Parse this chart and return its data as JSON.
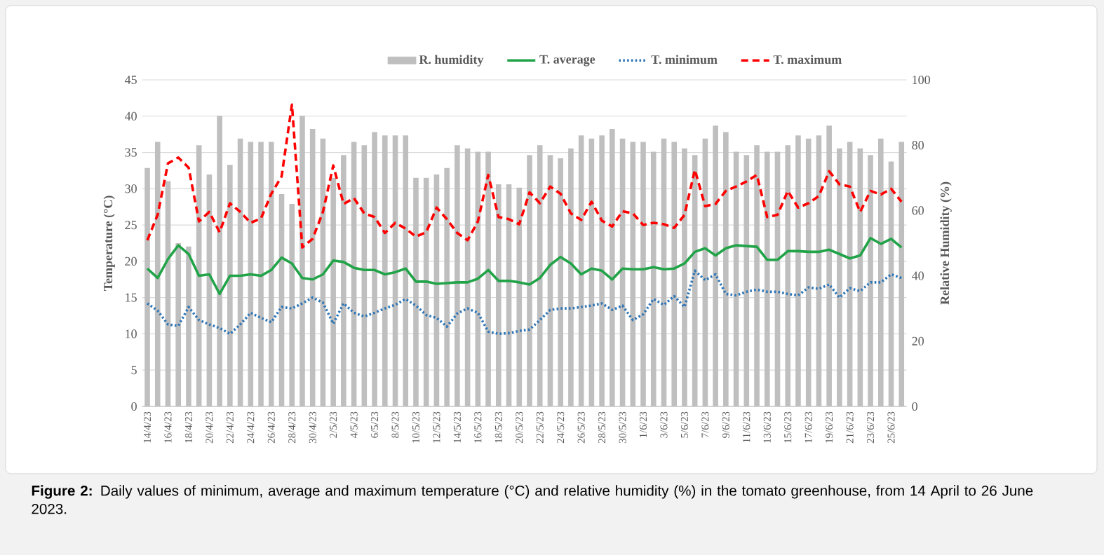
{
  "chart_data": {
    "type": "line",
    "categories": [
      "14/4/23",
      null,
      "16/4/23",
      null,
      "18/4/23",
      null,
      "20/4/23",
      null,
      "22/4/23",
      null,
      "24/4/23",
      null,
      "26/4/23",
      null,
      "28/4/23",
      null,
      "30/4/23",
      null,
      "2/5/23",
      null,
      "4/5/23",
      null,
      "6/5/23",
      null,
      "8/5/23",
      null,
      "10/5/23",
      null,
      "12/5/23",
      null,
      "14/5/23",
      null,
      "16/5/23",
      null,
      "18/5/23",
      null,
      "20/5/23",
      null,
      "22/5/23",
      null,
      "24/5/23",
      null,
      "26/5/23",
      null,
      "28/5/23",
      null,
      "30/5/23",
      null,
      "1/6/23",
      null,
      "3/6/23",
      null,
      "5/6/23",
      null,
      "7/6/23",
      null,
      "9/6/23",
      null,
      "11/6/23",
      null,
      "13/6/23",
      null,
      "15/6/23",
      null,
      "17/6/23",
      null,
      "19/6/23",
      null,
      "21/6/23",
      null,
      "23/6/23",
      null,
      "25/6/23",
      null
    ],
    "series": [
      {
        "name": "R. humidity",
        "type": "bar",
        "axis": "y2",
        "color": "#bfbfbf",
        "values": [
          73,
          81,
          69,
          50,
          49,
          80,
          71,
          89,
          74,
          82,
          81,
          81,
          81,
          65,
          62,
          89,
          85,
          82,
          70,
          77,
          81,
          80,
          84,
          83,
          83,
          83,
          70,
          70,
          71,
          73,
          80,
          79,
          78,
          78,
          68,
          68,
          67,
          77,
          80,
          77,
          76,
          79,
          83,
          82,
          83,
          85,
          82,
          81,
          81,
          78,
          82,
          81,
          79,
          77,
          82,
          86,
          84,
          78,
          77,
          80,
          78,
          78,
          80,
          83,
          82,
          83,
          86,
          79,
          81,
          79,
          77,
          82,
          75,
          81
        ]
      },
      {
        "name": "T. average",
        "line_style": "solid",
        "color": "#21a348",
        "values": [
          19,
          17.7,
          20.3,
          22.2,
          21,
          18,
          18.2,
          15.5,
          18,
          18,
          18.2,
          18,
          18.8,
          20.5,
          19.7,
          17.7,
          17.5,
          18.2,
          20.1,
          19.9,
          19.1,
          18.8,
          18.8,
          18.2,
          18.5,
          19,
          17.2,
          17.2,
          16.9,
          17,
          17.1,
          17.1,
          17.6,
          18.8,
          17.3,
          17.3,
          17.1,
          16.8,
          17.7,
          19.5,
          20.6,
          19.7,
          18.2,
          19,
          18.7,
          17.5,
          19,
          18.9,
          18.9,
          19.2,
          18.9,
          19,
          19.7,
          21.3,
          21.8,
          20.8,
          21.8,
          22.2,
          22.1,
          22,
          20.2,
          20.2,
          21.4,
          21.4,
          21.3,
          21.3,
          21.6,
          21,
          20.4,
          20.8,
          23.2,
          22.4,
          23.1,
          21.9
        ]
      },
      {
        "name": "T. minimum",
        "line_style": "dotted",
        "color": "#2e75b6",
        "values": [
          14.2,
          13.2,
          11.3,
          11.1,
          13.7,
          11.9,
          11.3,
          10.8,
          10,
          11.3,
          12.9,
          12.2,
          11.6,
          13.7,
          13.5,
          14.2,
          15,
          14.3,
          11.4,
          14.2,
          12.9,
          12.4,
          12.9,
          13.5,
          14,
          14.8,
          13.9,
          12.6,
          12.2,
          11,
          12.8,
          13.5,
          12.9,
          10.3,
          10,
          10.1,
          10.4,
          10.6,
          11.9,
          13.3,
          13.5,
          13.5,
          13.7,
          13.9,
          14.2,
          13.3,
          13.9,
          11.9,
          12.7,
          14.8,
          14,
          15.2,
          13.7,
          18.7,
          17.4,
          18.2,
          15.5,
          15.3,
          15.8,
          16.1,
          15.8,
          15.8,
          15.5,
          15.3,
          16.4,
          16.2,
          16.8,
          15,
          16.3,
          15.9,
          17.1,
          17.1,
          18.2,
          17.7
        ]
      },
      {
        "name": "T. maximum",
        "line_style": "dashed",
        "color": "#ff0000",
        "values": [
          22.9,
          26.4,
          33.5,
          34.3,
          32.9,
          25.5,
          26.8,
          24,
          28,
          26.8,
          25.3,
          25.9,
          29.3,
          31.7,
          41.6,
          21.9,
          23.1,
          26.8,
          33.2,
          27.9,
          28.7,
          26.6,
          26.1,
          23.9,
          25.3,
          24.5,
          23.4,
          24,
          27.4,
          25.8,
          23.9,
          22.9,
          25.5,
          31.9,
          26.1,
          25.8,
          25.1,
          29.5,
          28,
          30.3,
          29.3,
          26.6,
          25.7,
          28.2,
          25.6,
          24.8,
          26.9,
          26.6,
          25,
          25.3,
          25.1,
          24.6,
          26.4,
          32.6,
          27.6,
          27.9,
          29.7,
          30.3,
          31,
          31.9,
          26.1,
          26.4,
          29.7,
          27.4,
          28,
          29,
          32.4,
          30.6,
          30.3,
          26.8,
          29.7,
          29.2,
          30,
          28.2
        ]
      }
    ],
    "ylabel": "Temperature (°C)",
    "y2label": "Relative Humidity (%)",
    "ylim": [
      0,
      45
    ],
    "yticks": [
      0,
      5,
      10,
      15,
      20,
      25,
      30,
      35,
      40,
      45
    ],
    "y2lim": [
      0,
      100
    ],
    "y2ticks": [
      0,
      20,
      40,
      60,
      80,
      100
    ],
    "grid": "y",
    "legend": "top",
    "annotations": [
      "**Figure 2:** Daily values of minimum, average and maximum temperature (°C) and relative humidity (%) in the tomato greenhouse, from 14 April to 26 June 2023."
    ]
  }
}
